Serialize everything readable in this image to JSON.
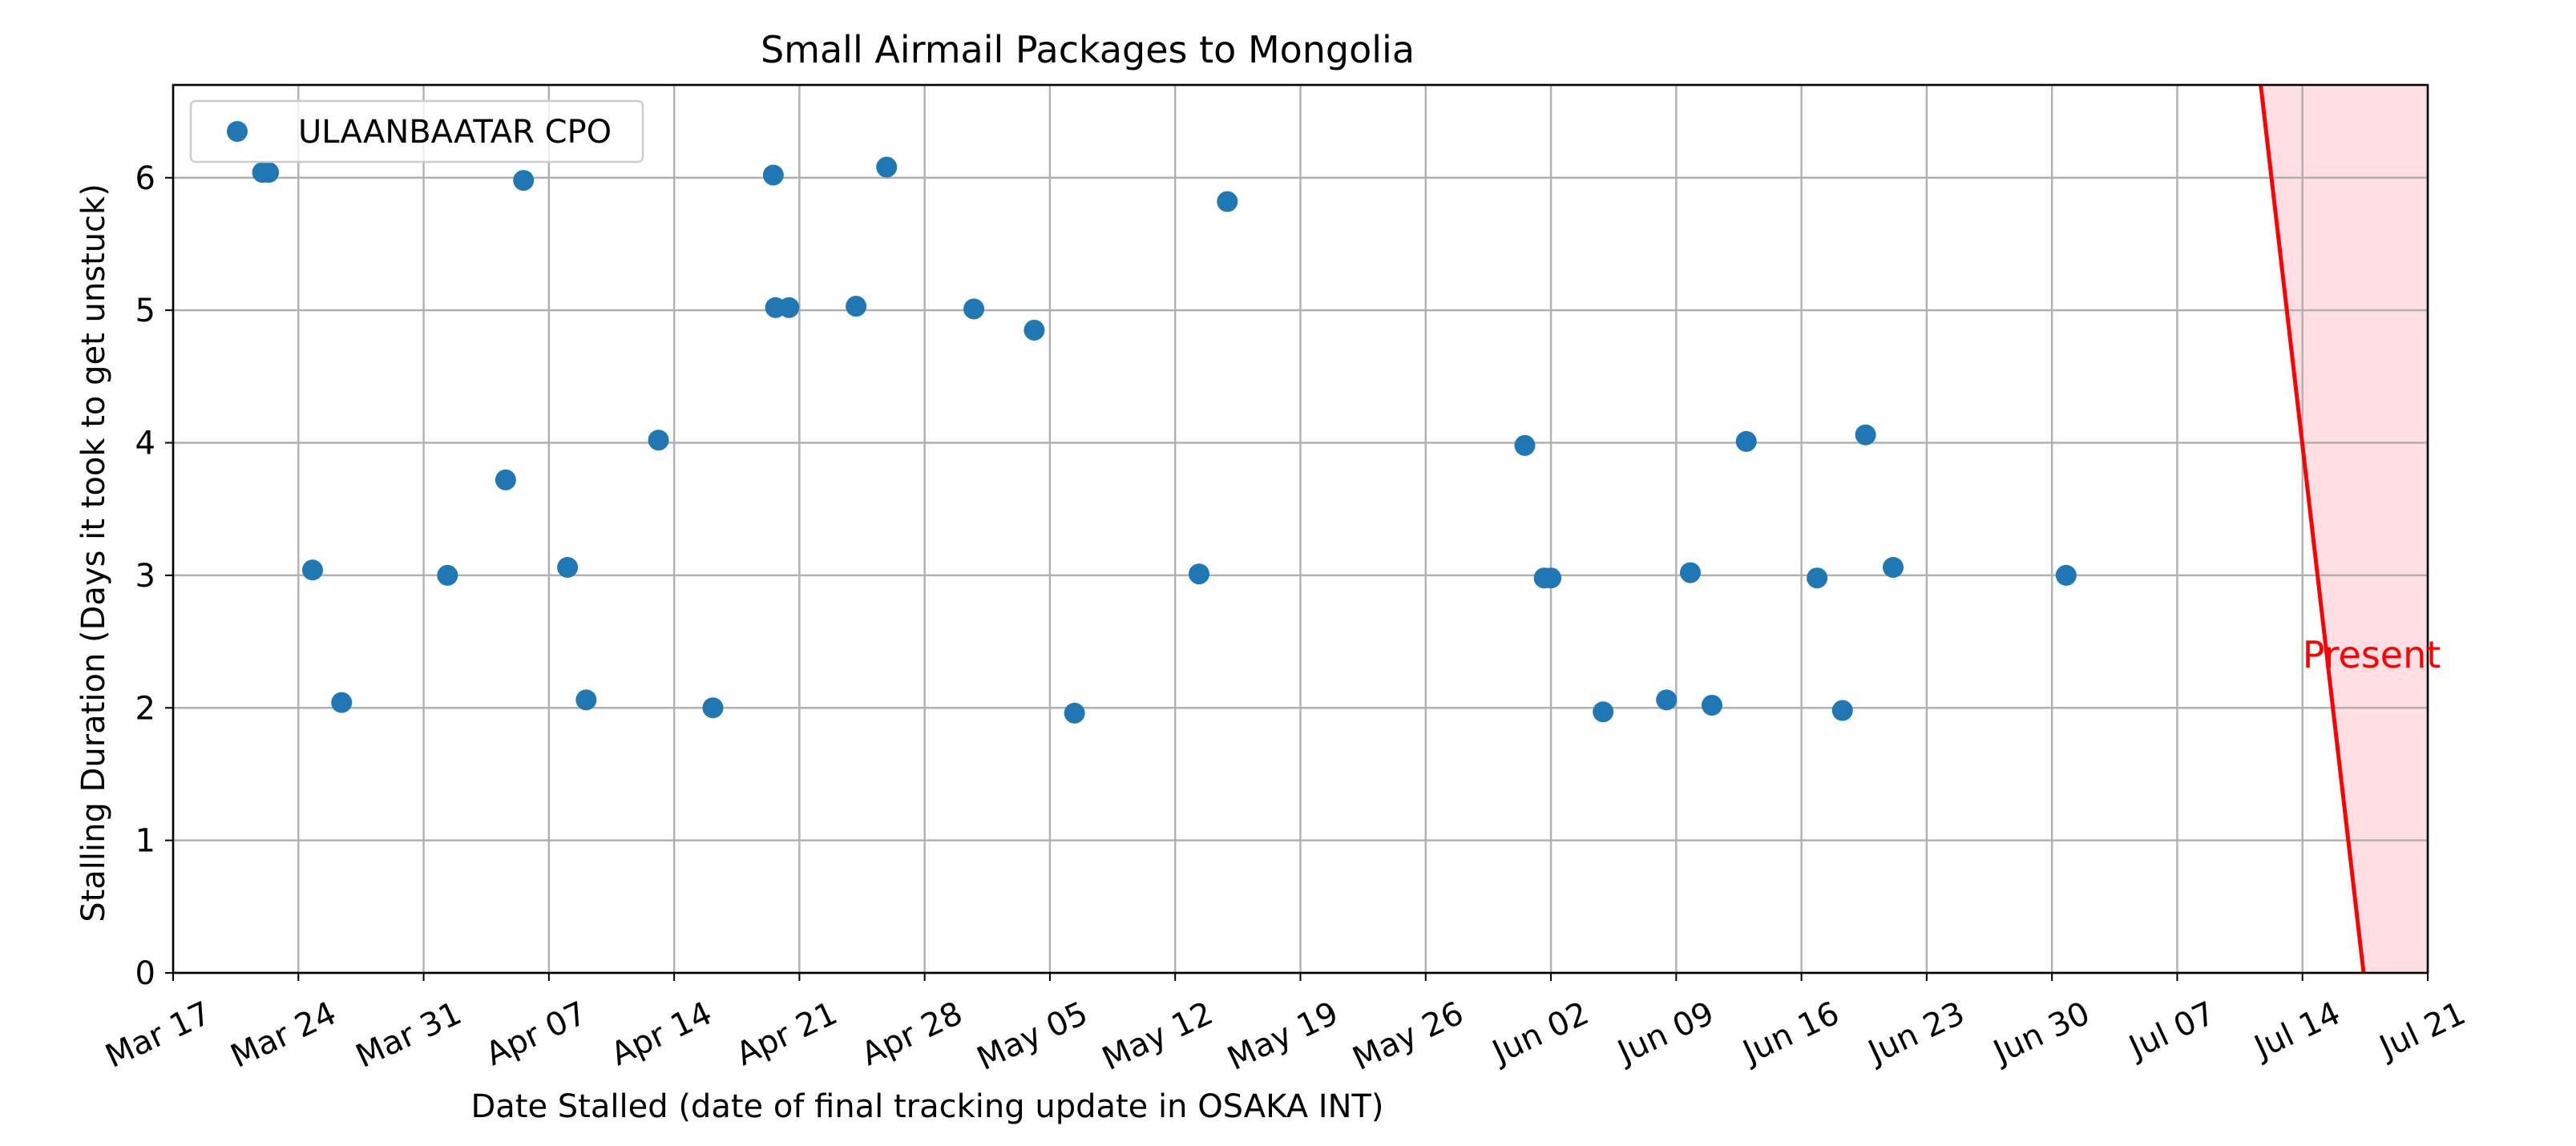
{
  "chart_data": {
    "type": "scatter",
    "title": "Small Airmail Packages to Mongolia",
    "xlabel": "Date Stalled (date of final tracking update in OSAKA INT)",
    "ylabel": "Stalling Duration (Days it took to get unstuck)",
    "xlim": [
      "2024-03-17",
      "2024-07-21"
    ],
    "ylim": [
      0,
      6.7
    ],
    "x_ticks": [
      "2024-03-17",
      "2024-03-24",
      "2024-03-31",
      "2024-04-07",
      "2024-04-14",
      "2024-04-21",
      "2024-04-28",
      "2024-05-05",
      "2024-05-12",
      "2024-05-19",
      "2024-05-26",
      "2024-06-02",
      "2024-06-09",
      "2024-06-16",
      "2024-06-23",
      "2024-06-30",
      "2024-07-07",
      "2024-07-14",
      "2024-07-21"
    ],
    "x_tick_labels": [
      "Mar 17",
      "Mar 24",
      "Mar 31",
      "Apr 07",
      "Apr 14",
      "Apr 21",
      "Apr 28",
      "May 05",
      "May 12",
      "May 19",
      "May 26",
      "Jun 02",
      "Jun 09",
      "Jun 16",
      "Jun 23",
      "Jun 30",
      "Jul 07",
      "Jul 14",
      "Jul 21"
    ],
    "y_ticks": [
      0,
      1,
      2,
      3,
      4,
      5,
      6
    ],
    "y_tick_labels": [
      "0",
      "1",
      "2",
      "3",
      "4",
      "5",
      "6"
    ],
    "grid": true,
    "legend_position": "top-left",
    "series": [
      {
        "name": "ULAANBAATAR CPO",
        "color": "#1f77b4",
        "points": [
          {
            "x": "2024-03-22T00:00",
            "y": 6.04
          },
          {
            "x": "2024-03-22T08:00",
            "y": 6.04
          },
          {
            "x": "2024-03-24T19:00",
            "y": 3.04
          },
          {
            "x": "2024-03-26T10:00",
            "y": 2.04
          },
          {
            "x": "2024-04-01T08:00",
            "y": 3.0
          },
          {
            "x": "2024-04-04T14:00",
            "y": 3.72
          },
          {
            "x": "2024-04-05T14:00",
            "y": 5.98
          },
          {
            "x": "2024-04-08T01:00",
            "y": 3.06
          },
          {
            "x": "2024-04-09T02:00",
            "y": 2.06
          },
          {
            "x": "2024-04-13T03:00",
            "y": 4.02
          },
          {
            "x": "2024-04-16T04:00",
            "y": 2.0
          },
          {
            "x": "2024-04-19T13:00",
            "y": 6.02
          },
          {
            "x": "2024-04-19T16:00",
            "y": 5.02
          },
          {
            "x": "2024-04-20T10:00",
            "y": 5.02
          },
          {
            "x": "2024-04-24T04:00",
            "y": 5.03
          },
          {
            "x": "2024-04-25T21:00",
            "y": 6.08
          },
          {
            "x": "2024-04-30T18:00",
            "y": 5.01
          },
          {
            "x": "2024-05-04T03:00",
            "y": 4.85
          },
          {
            "x": "2024-05-06T09:00",
            "y": 1.96
          },
          {
            "x": "2024-05-13T08:00",
            "y": 3.01
          },
          {
            "x": "2024-05-14T22:00",
            "y": 5.82
          },
          {
            "x": "2024-05-31T13:00",
            "y": 3.98
          },
          {
            "x": "2024-06-01T15:00",
            "y": 2.98
          },
          {
            "x": "2024-06-02T00:00",
            "y": 2.98
          },
          {
            "x": "2024-06-04T22:00",
            "y": 1.97
          },
          {
            "x": "2024-06-08T11:00",
            "y": 2.06
          },
          {
            "x": "2024-06-09T19:00",
            "y": 3.02
          },
          {
            "x": "2024-06-11T00:00",
            "y": 2.02
          },
          {
            "x": "2024-06-12T22:00",
            "y": 4.01
          },
          {
            "x": "2024-06-16T21:00",
            "y": 2.98
          },
          {
            "x": "2024-06-18T07:00",
            "y": 1.98
          },
          {
            "x": "2024-06-19T14:00",
            "y": 4.06
          },
          {
            "x": "2024-06-21T03:00",
            "y": 3.06
          },
          {
            "x": "2024-06-30T19:00",
            "y": 3.0
          }
        ]
      }
    ],
    "present_marker": {
      "label": "Present",
      "color": "#ff0000",
      "fill_color": "#ffdfe3",
      "line_top": {
        "x": "2024-07-11T16:00",
        "y": 6.7
      },
      "line_bottom": {
        "x": "2024-07-17T10:00",
        "y": 0
      },
      "shade_to": "2024-07-21",
      "label_y": 2.4
    },
    "axis_color": "#000000",
    "grid_color": "#b0b0b0"
  }
}
